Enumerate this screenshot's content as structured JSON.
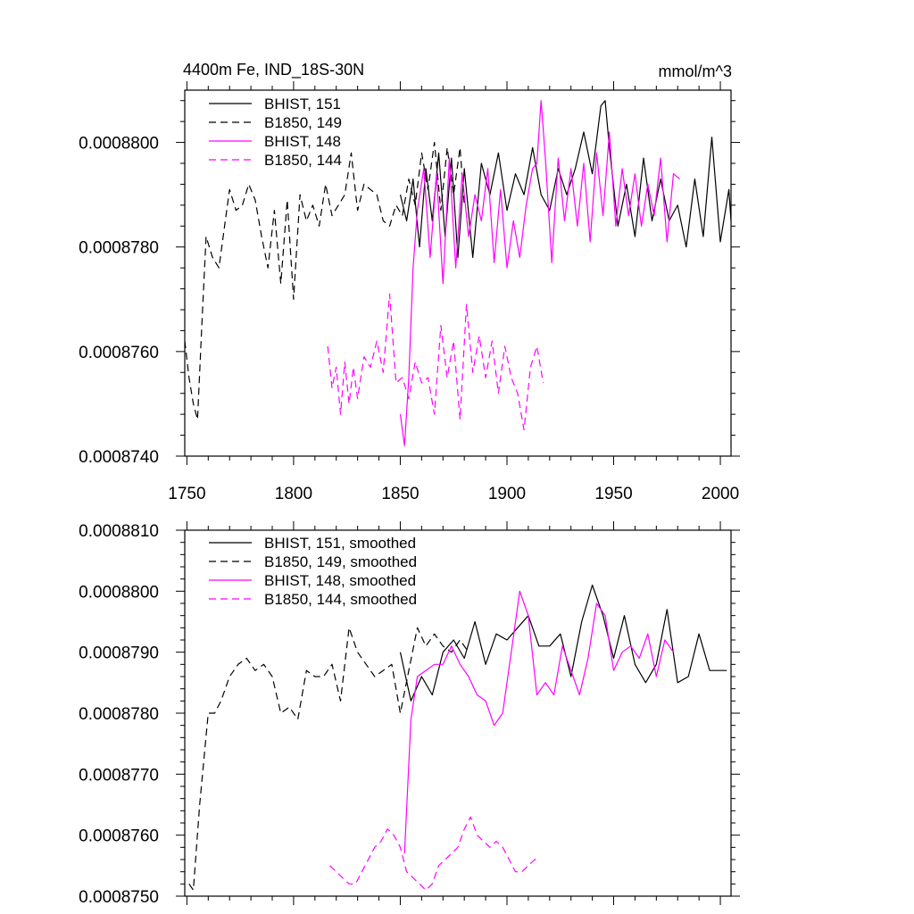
{
  "chart_data": [
    {
      "type": "line",
      "title": "4400m Fe, IND_18S-30N",
      "units": "mmol/m^3",
      "xlim": [
        1749,
        2005
      ],
      "ylim": [
        0.000874,
        0.000881
      ],
      "xticks": [
        1750,
        1800,
        1850,
        1900,
        1950,
        2000
      ],
      "xticklabels": [
        "1750",
        "1800",
        "1850",
        "1900",
        "1950",
        "2000"
      ],
      "yticks": [
        0.000874,
        0.000876,
        0.000878,
        0.00088
      ],
      "yticklabels": [
        "0.0008740",
        "0.0008760",
        "0.0008780",
        "0.0008800"
      ],
      "legend_position": "top-left",
      "series": [
        {
          "name": "BHIST, 151",
          "color": "#000000",
          "dash": "solid",
          "x": [
            1850,
            1853,
            1856,
            1859,
            1862,
            1865,
            1868,
            1871,
            1874,
            1877,
            1880,
            1884,
            1888,
            1892,
            1896,
            1900,
            1904,
            1908,
            1912,
            1916,
            1920,
            1924,
            1928,
            1932,
            1936,
            1940,
            1944,
            1946,
            1948,
            1952,
            1956,
            1960,
            1964,
            1968,
            1972,
            1976,
            1980,
            1984,
            1988,
            1992,
            1996,
            2000,
            2004,
            2005
          ],
          "y": [
            0.000879,
            0.0008785,
            0.0008793,
            0.000878,
            0.0008795,
            0.0008785,
            0.0008798,
            0.0008782,
            0.0008797,
            0.0008778,
            0.0008795,
            0.0008778,
            0.0008796,
            0.000879,
            0.0008798,
            0.0008787,
            0.0008794,
            0.000879,
            0.0008799,
            0.000879,
            0.0008787,
            0.0008795,
            0.000879,
            0.0008795,
            0.0008802,
            0.0008794,
            0.0008807,
            0.0008808,
            0.0008799,
            0.0008784,
            0.0008792,
            0.0008782,
            0.0008797,
            0.0008785,
            0.0008793,
            0.0008785,
            0.0008788,
            0.000878,
            0.0008793,
            0.0008782,
            0.0008801,
            0.0008781,
            0.0008791,
            0.0008785
          ]
        },
        {
          "name": "B1850, 149",
          "color": "#000000",
          "dash": "8,5",
          "x": [
            1749,
            1751,
            1753,
            1755,
            1757,
            1759,
            1762,
            1765,
            1768,
            1770,
            1773,
            1776,
            1779,
            1782,
            1785,
            1788,
            1791,
            1794,
            1797,
            1800,
            1803,
            1806,
            1809,
            1812,
            1815,
            1818,
            1821,
            1824,
            1827,
            1830,
            1833,
            1836,
            1839,
            1842,
            1845,
            1848,
            1851,
            1854,
            1857,
            1860,
            1863,
            1866,
            1869,
            1872,
            1875,
            1878,
            1880
          ],
          "y": [
            0.0008762,
            0.0008755,
            0.000875,
            0.0008747,
            0.0008765,
            0.0008782,
            0.0008778,
            0.0008776,
            0.0008785,
            0.0008791,
            0.0008787,
            0.0008788,
            0.0008792,
            0.0008789,
            0.0008782,
            0.0008776,
            0.0008787,
            0.0008773,
            0.0008789,
            0.000877,
            0.000879,
            0.0008785,
            0.0008788,
            0.0008784,
            0.0008792,
            0.0008786,
            0.0008788,
            0.000879,
            0.0008798,
            0.0008787,
            0.0008792,
            0.0008791,
            0.000879,
            0.0008785,
            0.0008784,
            0.0008788,
            0.0008786,
            0.0008793,
            0.0008788,
            0.0008798,
            0.0008791,
            0.00088,
            0.0008787,
            0.0008799,
            0.000879,
            0.0008799,
            0.0008788
          ]
        },
        {
          "name": "BHIST, 148",
          "color": "#ff00ff",
          "dash": "solid",
          "x": [
            1850,
            1852,
            1854,
            1856,
            1858,
            1861,
            1864,
            1867,
            1870,
            1873,
            1876,
            1879,
            1882,
            1885,
            1888,
            1891,
            1894,
            1897,
            1900,
            1903,
            1906,
            1909,
            1912,
            1914,
            1916,
            1918,
            1921,
            1924,
            1927,
            1930,
            1933,
            1936,
            1939,
            1942,
            1945,
            1948,
            1951,
            1954,
            1957,
            1960,
            1963,
            1966,
            1969,
            1972,
            1975,
            1978,
            1981
          ],
          "y": [
            0.0008748,
            0.0008742,
            0.0008755,
            0.0008776,
            0.0008787,
            0.0008795,
            0.0008778,
            0.0008794,
            0.0008773,
            0.0008797,
            0.0008776,
            0.0008794,
            0.0008782,
            0.000879,
            0.0008785,
            0.0008795,
            0.0008777,
            0.0008791,
            0.0008776,
            0.0008785,
            0.0008778,
            0.0008788,
            0.0008795,
            0.0008796,
            0.0008808,
            0.0008797,
            0.0008777,
            0.0008797,
            0.0008785,
            0.0008795,
            0.0008784,
            0.0008796,
            0.0008781,
            0.0008798,
            0.0008786,
            0.0008802,
            0.0008784,
            0.0008795,
            0.0008786,
            0.0008794,
            0.0008784,
            0.0008792,
            0.0008786,
            0.0008797,
            0.0008781,
            0.0008794,
            0.0008793
          ]
        },
        {
          "name": "B1850, 144",
          "color": "#ff00ff",
          "dash": "8,5",
          "x": [
            1816,
            1818,
            1820,
            1822,
            1824,
            1826,
            1828,
            1830,
            1833,
            1836,
            1839,
            1842,
            1845,
            1848,
            1851,
            1854,
            1857,
            1860,
            1863,
            1866,
            1869,
            1872,
            1875,
            1878,
            1881,
            1884,
            1887,
            1890,
            1893,
            1896,
            1899,
            1902,
            1905,
            1908,
            1911,
            1914,
            1917
          ],
          "y": [
            0.0008761,
            0.0008753,
            0.0008757,
            0.0008748,
            0.0008758,
            0.000875,
            0.0008757,
            0.0008751,
            0.0008759,
            0.0008757,
            0.0008762,
            0.0008756,
            0.0008771,
            0.0008754,
            0.0008755,
            0.0008751,
            0.0008758,
            0.0008754,
            0.0008755,
            0.0008748,
            0.0008765,
            0.0008755,
            0.0008762,
            0.0008747,
            0.0008769,
            0.0008756,
            0.0008763,
            0.0008755,
            0.0008762,
            0.0008752,
            0.0008761,
            0.0008755,
            0.0008752,
            0.0008745,
            0.0008757,
            0.0008761,
            0.0008754
          ]
        }
      ]
    },
    {
      "type": "line",
      "title": "",
      "xlim": [
        1749,
        2005
      ],
      "ylim": [
        0.000875,
        0.000881
      ],
      "xticks": [
        1750,
        1800,
        1850,
        1900,
        1950,
        2000
      ],
      "yticks": [
        0.000875,
        0.000876,
        0.000877,
        0.000878,
        0.000879,
        0.00088,
        0.000881
      ],
      "yticklabels": [
        "0.0008750",
        "0.0008760",
        "0.0008770",
        "0.0008780",
        "0.0008790",
        "0.0008800",
        "0.0008810"
      ],
      "legend_position": "top-left",
      "series": [
        {
          "name": "BHIST, 151, smoothed",
          "color": "#000000",
          "dash": "solid",
          "x": [
            1850,
            1855,
            1860,
            1865,
            1870,
            1875,
            1880,
            1885,
            1890,
            1895,
            1900,
            1905,
            1910,
            1915,
            1920,
            1925,
            1930,
            1935,
            1940,
            1945,
            1950,
            1955,
            1960,
            1965,
            1970,
            1975,
            1980,
            1985,
            1990,
            1995,
            2000,
            2003
          ],
          "y": [
            0.000879,
            0.0008782,
            0.0008786,
            0.0008783,
            0.000879,
            0.0008792,
            0.0008789,
            0.0008795,
            0.0008788,
            0.0008793,
            0.0008792,
            0.0008794,
            0.0008796,
            0.0008791,
            0.0008791,
            0.0008793,
            0.0008786,
            0.0008795,
            0.0008801,
            0.0008796,
            0.0008789,
            0.0008796,
            0.0008788,
            0.0008785,
            0.0008788,
            0.0008797,
            0.0008785,
            0.0008786,
            0.0008793,
            0.0008787,
            0.0008787,
            0.0008787
          ]
        },
        {
          "name": "B1850, 149, smoothed",
          "color": "#000000",
          "dash": "8,5",
          "x": [
            1751,
            1753,
            1756,
            1760,
            1763,
            1766,
            1770,
            1774,
            1778,
            1782,
            1786,
            1790,
            1794,
            1798,
            1802,
            1806,
            1810,
            1814,
            1818,
            1822,
            1826,
            1830,
            1834,
            1838,
            1842,
            1846,
            1850,
            1854,
            1858,
            1862,
            1866,
            1870,
            1874,
            1878,
            1882
          ],
          "y": [
            0.0008752,
            0.0008751,
            0.0008765,
            0.000878,
            0.000878,
            0.0008782,
            0.0008786,
            0.0008788,
            0.0008789,
            0.0008787,
            0.0008788,
            0.0008786,
            0.000878,
            0.0008781,
            0.0008779,
            0.0008787,
            0.0008786,
            0.0008786,
            0.0008788,
            0.0008782,
            0.0008794,
            0.000879,
            0.0008788,
            0.0008786,
            0.0008787,
            0.0008788,
            0.000878,
            0.0008787,
            0.0008794,
            0.0008791,
            0.0008793,
            0.0008791,
            0.000879,
            0.0008792,
            0.000879
          ]
        },
        {
          "name": "BHIST, 148, smoothed",
          "color": "#ff00ff",
          "dash": "solid",
          "x": [
            1852,
            1855,
            1858,
            1862,
            1866,
            1870,
            1874,
            1878,
            1882,
            1886,
            1890,
            1894,
            1898,
            1902,
            1906,
            1910,
            1914,
            1918,
            1922,
            1926,
            1930,
            1934,
            1938,
            1942,
            1946,
            1950,
            1954,
            1958,
            1962,
            1966,
            1970,
            1974,
            1978
          ],
          "y": [
            0.0008757,
            0.0008779,
            0.0008786,
            0.0008787,
            0.0008788,
            0.0008788,
            0.0008791,
            0.0008788,
            0.0008786,
            0.0008783,
            0.0008782,
            0.0008778,
            0.000878,
            0.000879,
            0.00088,
            0.0008796,
            0.0008783,
            0.0008785,
            0.0008783,
            0.0008791,
            0.0008787,
            0.0008783,
            0.0008789,
            0.0008798,
            0.0008796,
            0.0008787,
            0.000879,
            0.0008791,
            0.0008789,
            0.0008793,
            0.0008786,
            0.0008792,
            0.000879
          ]
        },
        {
          "name": "B1850, 144, smoothed",
          "color": "#ff00ff",
          "dash": "8,5",
          "x": [
            1817,
            1820,
            1823,
            1826,
            1829,
            1832,
            1835,
            1838,
            1841,
            1844,
            1847,
            1850,
            1853,
            1856,
            1859,
            1862,
            1865,
            1868,
            1871,
            1874,
            1877,
            1880,
            1883,
            1886,
            1889,
            1892,
            1895,
            1898,
            1901,
            1904,
            1907,
            1910,
            1913,
            1915
          ],
          "y": [
            0.0008755,
            0.0008754,
            0.0008753,
            0.0008752,
            0.0008752,
            0.0008754,
            0.0008756,
            0.0008758,
            0.0008759,
            0.0008761,
            0.000876,
            0.0008758,
            0.0008754,
            0.0008753,
            0.0008752,
            0.0008751,
            0.0008752,
            0.0008755,
            0.0008756,
            0.0008757,
            0.0008758,
            0.0008761,
            0.0008763,
            0.000876,
            0.0008759,
            0.0008758,
            0.0008759,
            0.0008758,
            0.0008756,
            0.0008754,
            0.0008754,
            0.0008755,
            0.0008756,
            0.0008756
          ]
        }
      ]
    }
  ]
}
